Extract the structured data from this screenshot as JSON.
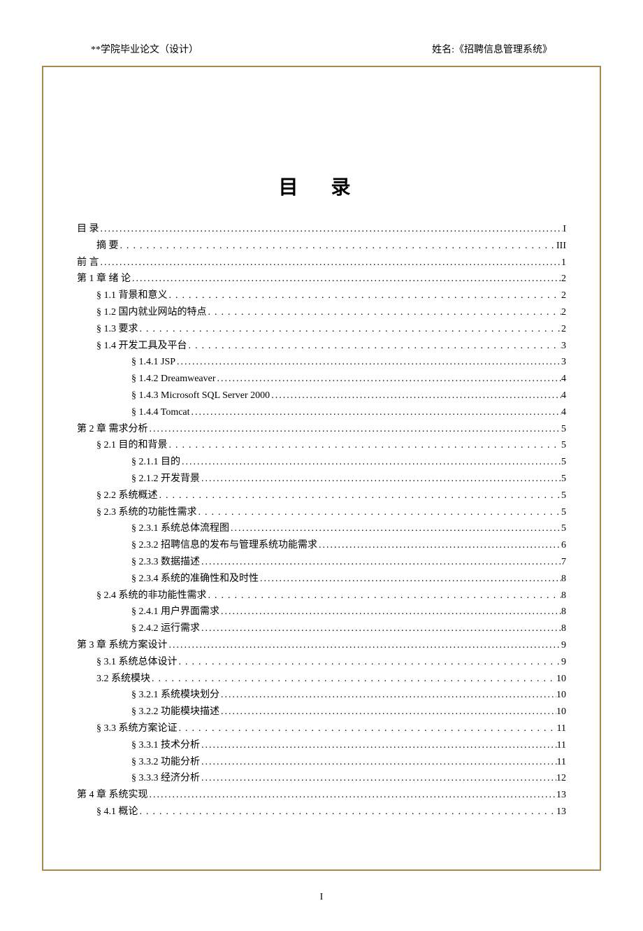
{
  "header": {
    "left": "**学院毕业论文（设计）",
    "right": "姓名:《招聘信息管理系统》"
  },
  "title": "目 录",
  "page_number": "I",
  "colors": {
    "frame_border": "#a8894f",
    "text": "#000000",
    "background": "#ffffff"
  },
  "typography": {
    "title_fontsize": 28,
    "body_fontsize": 14,
    "title_letter_spacing": 20,
    "line_height": 1.7,
    "font_family": "SimSun"
  },
  "toc": [
    {
      "label": "目   录",
      "page": "I",
      "indent": 0,
      "wide_dots": false
    },
    {
      "label": "摘   要",
      "page": "III",
      "indent": 1,
      "wide_dots": true
    },
    {
      "label": "前    言",
      "page": "1",
      "indent": 0,
      "wide_dots": false
    },
    {
      "label": "第 1 章   绪 论",
      "page": "2",
      "indent": 0,
      "wide_dots": false
    },
    {
      "label": "§ 1.1 背景和意义",
      "page": "2",
      "indent": 1,
      "wide_dots": true
    },
    {
      "label": "§ 1.2 国内就业网站的特点",
      "page": "2",
      "indent": 1,
      "wide_dots": true
    },
    {
      "label": "§ 1.3 要求",
      "page": "2",
      "indent": 1,
      "wide_dots": true
    },
    {
      "label": "§ 1.4 开发工具及平台",
      "page": "3",
      "indent": 1,
      "wide_dots": true
    },
    {
      "label": "§ 1.4.1 JSP",
      "page": "3",
      "indent": 2,
      "wide_dots": false
    },
    {
      "label": "§ 1.4.2 Dreamweaver",
      "page": "4",
      "indent": 2,
      "wide_dots": false
    },
    {
      "label": "§ 1.4.3 Microsoft SQL Server 2000",
      "page": "4",
      "indent": 2,
      "wide_dots": false
    },
    {
      "label": "§ 1.4.4 Tomcat",
      "page": "4",
      "indent": 2,
      "wide_dots": false
    },
    {
      "label": "第 2 章   需求分析",
      "page": "5",
      "indent": 0,
      "wide_dots": false
    },
    {
      "label": "§ 2.1 目的和背景",
      "page": "5",
      "indent": 1,
      "wide_dots": true
    },
    {
      "label": "§ 2.1.1 目的",
      "page": "5",
      "indent": 2,
      "wide_dots": false
    },
    {
      "label": "§ 2.1.2 开发背景",
      "page": "5",
      "indent": 2,
      "wide_dots": false
    },
    {
      "label": "§ 2.2 系统概述",
      "page": "5",
      "indent": 1,
      "wide_dots": true
    },
    {
      "label": "§ 2.3 系统的功能性需求",
      "page": "5",
      "indent": 1,
      "wide_dots": true
    },
    {
      "label": "§ 2.3.1 系统总体流程图",
      "page": "5",
      "indent": 2,
      "wide_dots": false
    },
    {
      "label": "§ 2.3.2 招聘信息的发布与管理系统功能需求",
      "page": "6",
      "indent": 2,
      "wide_dots": false
    },
    {
      "label": "§ 2.3.3 数据描述",
      "page": "7",
      "indent": 2,
      "wide_dots": false
    },
    {
      "label": "§ 2.3.4 系统的准确性和及时性",
      "page": "8",
      "indent": 2,
      "wide_dots": false
    },
    {
      "label": "§ 2.4 系统的非功能性需求",
      "page": "8",
      "indent": 1,
      "wide_dots": true
    },
    {
      "label": "§ 2.4.1 用户界面需求",
      "page": "8",
      "indent": 2,
      "wide_dots": false
    },
    {
      "label": "§ 2.4.2 运行需求",
      "page": "8",
      "indent": 2,
      "wide_dots": false
    },
    {
      "label": "第 3 章   系统方案设计",
      "page": "9",
      "indent": 0,
      "wide_dots": false
    },
    {
      "label": "§ 3.1 系统总体设计",
      "page": "9",
      "indent": 1,
      "wide_dots": true
    },
    {
      "label": "3.2 系统模块",
      "page": "10",
      "indent": 1,
      "wide_dots": true
    },
    {
      "label": "§ 3.2.1 系统模块划分",
      "page": "10",
      "indent": 2,
      "wide_dots": false
    },
    {
      "label": "§ 3.2.2 功能模块描述",
      "page": "10",
      "indent": 2,
      "wide_dots": false
    },
    {
      "label": "§ 3.3  系统方案论证",
      "page": "11",
      "indent": 1,
      "wide_dots": true
    },
    {
      "label": "§ 3.3.1 技术分析",
      "page": "11",
      "indent": 2,
      "wide_dots": false
    },
    {
      "label": "§ 3.3.2 功能分析",
      "page": "11",
      "indent": 2,
      "wide_dots": false
    },
    {
      "label": "§ 3.3.3 经济分析",
      "page": "12",
      "indent": 2,
      "wide_dots": false
    },
    {
      "label": "第 4 章   系统实现",
      "page": "13",
      "indent": 0,
      "wide_dots": false
    },
    {
      "label": "§ 4.1 概论",
      "page": "13",
      "indent": 1,
      "wide_dots": true
    }
  ]
}
